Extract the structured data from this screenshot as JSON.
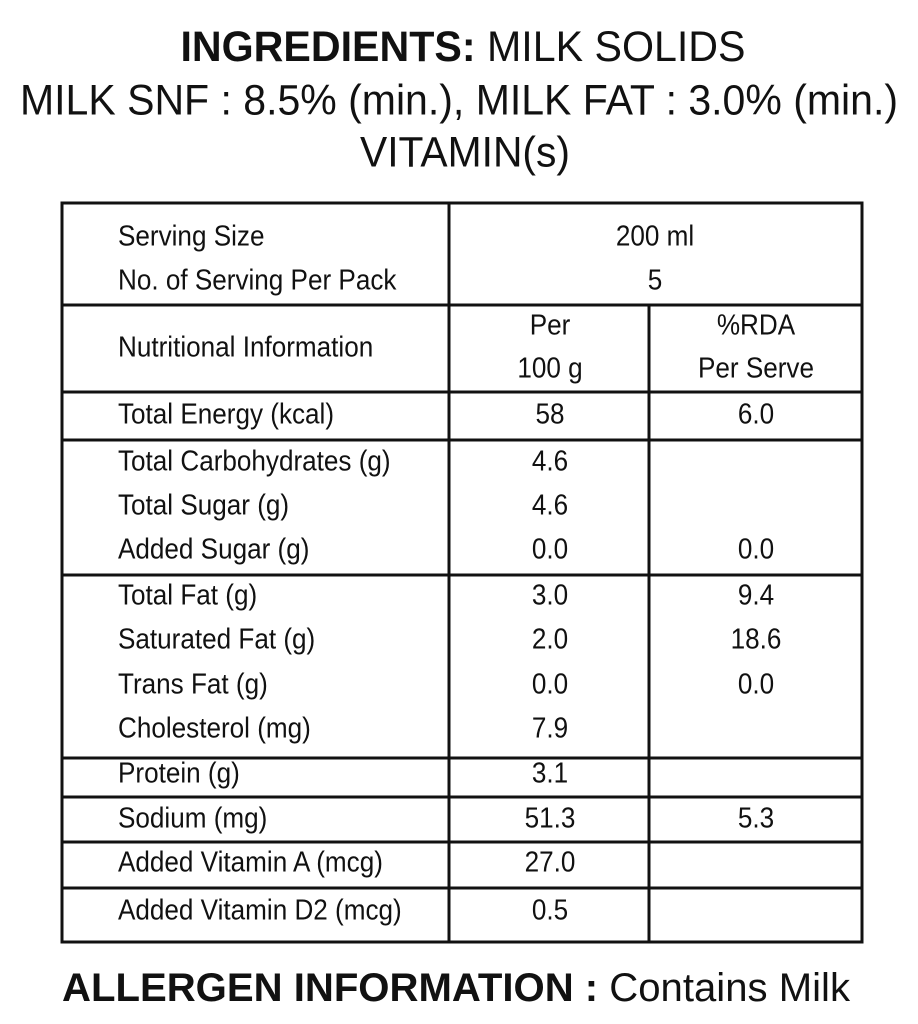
{
  "ingredients": {
    "label": "INGREDIENTS:",
    "text": "MILK SOLIDS",
    "line2": "MILK SNF : 8.5% (min.), MILK FAT : 3.0% (min.)",
    "line3": "VITAMIN(s)"
  },
  "table": {
    "serving": [
      [
        "Serving Size",
        "200  ml"
      ],
      [
        "No. of Serving Per Pack",
        "5"
      ]
    ],
    "header": {
      "name": "Nutritional Information",
      "per": [
        "Per",
        "100 g"
      ],
      "rda": [
        "%RDA",
        "Per Serve"
      ]
    },
    "groups": [
      [
        [
          "Total Energy (kcal)",
          "58",
          "6.0"
        ]
      ],
      [
        [
          "Total Carbohydrates (g)",
          "4.6"
        ],
        [
          "Total Sugar (g)",
          "4.6"
        ],
        [
          "Added Sugar (g)",
          "0.0",
          "0.0"
        ]
      ],
      [
        [
          "Total Fat (g)",
          "3.0",
          "9.4"
        ],
        [
          "Saturated Fat (g)",
          "2.0",
          "18.6"
        ],
        [
          "Trans Fat (g)",
          "0.0",
          "0.0"
        ],
        [
          "Cholesterol (mg)",
          "7.9"
        ]
      ],
      [
        [
          "Protein (g)",
          "3.1"
        ]
      ],
      [
        [
          "Sodium (mg)",
          "51.3",
          "5.3"
        ]
      ],
      [
        [
          "Added Vitamin A (mcg)",
          "27.0"
        ]
      ],
      [
        [
          "Added Vitamin D2 (mcg)",
          "0.5"
        ]
      ]
    ]
  },
  "allergen": {
    "label": "ALLERGEN INFORMATION :",
    "text": "Contains Milk"
  }
}
